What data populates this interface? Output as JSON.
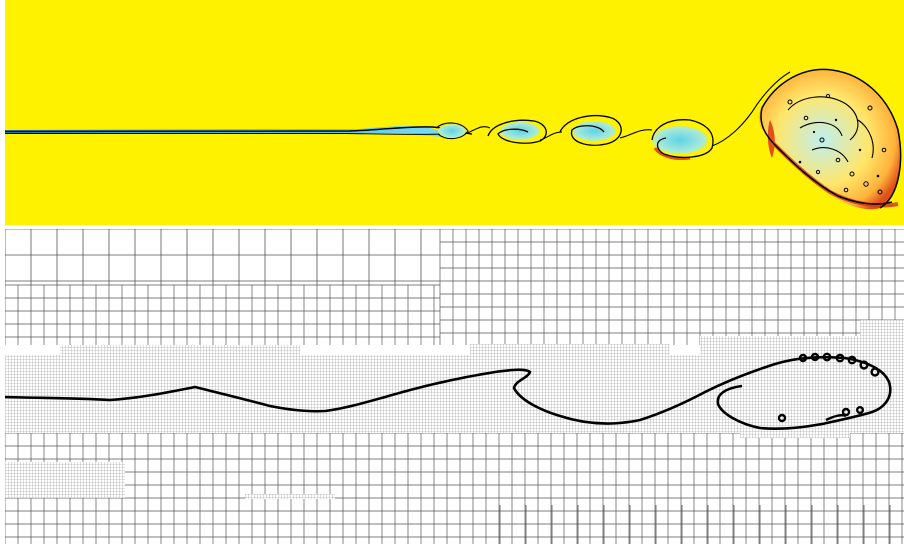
{
  "figure": {
    "panels": [
      {
        "id": "top",
        "kind": "colormap-field",
        "colormap": [
          "#1e9ad6",
          "#66d6e6",
          "#ffffff",
          "#fff200",
          "#ff9a1a",
          "#d23a12"
        ],
        "background": "#fff200",
        "interface_color": "#000000"
      },
      {
        "id": "bottom",
        "kind": "adaptive-mesh",
        "levels": 4,
        "grid_color": "#555555",
        "interface_color": "#000000"
      }
    ]
  }
}
